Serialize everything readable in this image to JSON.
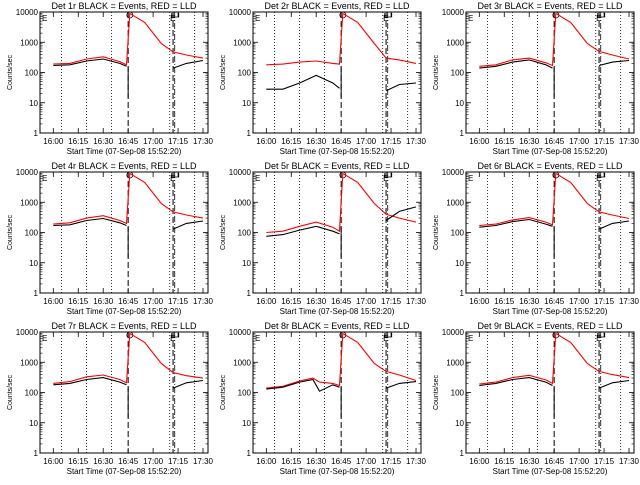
{
  "figure": {
    "ylabel": "Counts/sec",
    "xlabel": "Start Time (07-Sep-08 15:52:20)",
    "x_ticks": [
      "16:00",
      "16:15",
      "16:30",
      "16:45",
      "17:00",
      "17:15",
      "17:30"
    ],
    "y_ticks": [
      "1",
      "10",
      "100",
      "1000",
      "10000"
    ],
    "markers": {
      "first": "E",
      "circle": "O",
      "second": "E",
      "bracket": "⊓"
    },
    "colors": {
      "events": "#000000",
      "lld": "#ff0000",
      "background": "#ffffff"
    }
  },
  "chart_data": [
    {
      "type": "line",
      "title": "Det 1r BLACK = Events, RED = LLD",
      "log_y": true,
      "ylim": [
        1,
        10000
      ],
      "grid": false,
      "x": [
        "16:00",
        "16:10",
        "16:20",
        "16:30",
        "16:40",
        "16:44",
        "16:46",
        "16:55",
        "17:00",
        "17:05",
        "17:12",
        "17:20",
        "17:30"
      ],
      "series": [
        {
          "name": "LLD",
          "values": [
            190,
            200,
            280,
            330,
            230,
            180,
            9000,
            4500,
            2000,
            900,
            480,
            380,
            300
          ]
        },
        {
          "name": "Events",
          "values": [
            170,
            180,
            240,
            280,
            200,
            160,
            null,
            null,
            null,
            null,
            140,
            200,
            250
          ]
        }
      ]
    },
    {
      "type": "line",
      "title": "Det 2r BLACK = Events, RED = LLD",
      "log_y": true,
      "ylim": [
        1,
        10000
      ],
      "grid": false,
      "x": [
        "16:00",
        "16:10",
        "16:20",
        "16:30",
        "16:40",
        "16:44",
        "16:46",
        "16:55",
        "17:00",
        "17:05",
        "17:12",
        "17:20",
        "17:30"
      ],
      "series": [
        {
          "name": "LLD",
          "values": [
            180,
            190,
            220,
            240,
            200,
            190,
            9000,
            4500,
            2000,
            900,
            300,
            260,
            200
          ]
        },
        {
          "name": "Events",
          "values": [
            28,
            28,
            45,
            80,
            45,
            30,
            null,
            null,
            null,
            null,
            25,
            40,
            45
          ]
        }
      ]
    },
    {
      "type": "line",
      "title": "Det 3r BLACK = Events, RED = LLD",
      "log_y": true,
      "ylim": [
        1,
        10000
      ],
      "grid": false,
      "x": [
        "16:00",
        "16:10",
        "16:20",
        "16:30",
        "16:40",
        "16:44",
        "16:46",
        "16:55",
        "17:00",
        "17:05",
        "17:12",
        "17:20",
        "17:30"
      ],
      "series": [
        {
          "name": "LLD",
          "values": [
            160,
            180,
            260,
            300,
            210,
            170,
            9000,
            4500,
            2000,
            900,
            500,
            380,
            280
          ]
        },
        {
          "name": "Events",
          "values": [
            140,
            160,
            220,
            260,
            180,
            140,
            null,
            null,
            null,
            null,
            170,
            220,
            250
          ]
        }
      ]
    },
    {
      "type": "line",
      "title": "Det 4r BLACK = Events, RED = LLD",
      "log_y": true,
      "ylim": [
        1,
        10000
      ],
      "grid": false,
      "x": [
        "16:00",
        "16:10",
        "16:20",
        "16:30",
        "16:40",
        "16:44",
        "16:46",
        "16:55",
        "17:00",
        "17:05",
        "17:12",
        "17:20",
        "17:30"
      ],
      "series": [
        {
          "name": "LLD",
          "values": [
            190,
            210,
            300,
            360,
            250,
            200,
            9000,
            4500,
            2000,
            900,
            480,
            380,
            300
          ]
        },
        {
          "name": "Events",
          "values": [
            170,
            180,
            250,
            290,
            210,
            170,
            null,
            null,
            null,
            null,
            130,
            200,
            240
          ]
        }
      ]
    },
    {
      "type": "line",
      "title": "Det 5r BLACK = Events, RED = LLD",
      "log_y": true,
      "ylim": [
        1,
        10000
      ],
      "grid": false,
      "x": [
        "16:00",
        "16:10",
        "16:20",
        "16:30",
        "16:40",
        "16:44",
        "16:46",
        "16:55",
        "17:00",
        "17:05",
        "17:12",
        "17:20",
        "17:30"
      ],
      "series": [
        {
          "name": "LLD",
          "values": [
            100,
            110,
            160,
            220,
            150,
            110,
            9000,
            4500,
            2000,
            900,
            400,
            300,
            220
          ]
        },
        {
          "name": "Events",
          "values": [
            75,
            85,
            120,
            160,
            110,
            90,
            null,
            null,
            null,
            null,
            250,
            500,
            700
          ]
        }
      ]
    },
    {
      "type": "line",
      "title": "Det 6r BLACK = Events, RED = LLD",
      "log_y": true,
      "ylim": [
        1,
        10000
      ],
      "grid": false,
      "x": [
        "16:00",
        "16:10",
        "16:20",
        "16:30",
        "16:40",
        "16:44",
        "16:46",
        "16:55",
        "17:00",
        "17:05",
        "17:12",
        "17:20",
        "17:30"
      ],
      "series": [
        {
          "name": "LLD",
          "values": [
            170,
            190,
            260,
            310,
            220,
            180,
            9000,
            4500,
            2000,
            900,
            480,
            380,
            290
          ]
        },
        {
          "name": "Events",
          "values": [
            150,
            170,
            230,
            270,
            190,
            160,
            null,
            null,
            null,
            null,
            130,
            200,
            240
          ]
        }
      ]
    },
    {
      "type": "line",
      "title": "Det 7r BLACK = Events, RED = LLD",
      "log_y": true,
      "ylim": [
        1,
        10000
      ],
      "grid": false,
      "x": [
        "16:00",
        "16:10",
        "16:20",
        "16:30",
        "16:40",
        "16:44",
        "16:46",
        "16:55",
        "17:00",
        "17:05",
        "17:12",
        "17:20",
        "17:30"
      ],
      "series": [
        {
          "name": "LLD",
          "values": [
            200,
            230,
            330,
            380,
            270,
            210,
            9000,
            4500,
            2000,
            900,
            460,
            360,
            300
          ]
        },
        {
          "name": "Events",
          "values": [
            180,
            200,
            270,
            310,
            220,
            180,
            null,
            null,
            null,
            null,
            140,
            210,
            250
          ]
        }
      ]
    },
    {
      "type": "line",
      "title": "Det 8r BLACK = Events, RED = LLD",
      "log_y": true,
      "ylim": [
        1,
        10000
      ],
      "grid": false,
      "x": [
        "16:00",
        "16:10",
        "16:20",
        "16:28",
        "16:32",
        "16:40",
        "16:44",
        "16:46",
        "16:55",
        "17:00",
        "17:05",
        "17:12",
        "17:20",
        "17:30"
      ],
      "series": [
        {
          "name": "LLD",
          "values": [
            140,
            160,
            240,
            300,
            220,
            200,
            170,
            9000,
            4500,
            2000,
            900,
            500,
            380,
            250
          ]
        },
        {
          "name": "Events",
          "values": [
            130,
            150,
            220,
            270,
            110,
            180,
            150,
            null,
            null,
            null,
            null,
            140,
            200,
            230
          ]
        }
      ]
    },
    {
      "type": "line",
      "title": "Det 9r BLACK = Events, RED = LLD",
      "log_y": true,
      "ylim": [
        1,
        10000
      ],
      "grid": false,
      "x": [
        "16:00",
        "16:10",
        "16:20",
        "16:30",
        "16:40",
        "16:44",
        "16:46",
        "16:55",
        "17:00",
        "17:05",
        "17:12",
        "17:20",
        "17:30"
      ],
      "series": [
        {
          "name": "LLD",
          "values": [
            190,
            220,
            310,
            370,
            260,
            200,
            9000,
            4500,
            2000,
            900,
            500,
            390,
            310
          ]
        },
        {
          "name": "Events",
          "values": [
            170,
            200,
            270,
            310,
            220,
            170,
            null,
            null,
            null,
            null,
            140,
            210,
            250
          ]
        }
      ]
    }
  ]
}
